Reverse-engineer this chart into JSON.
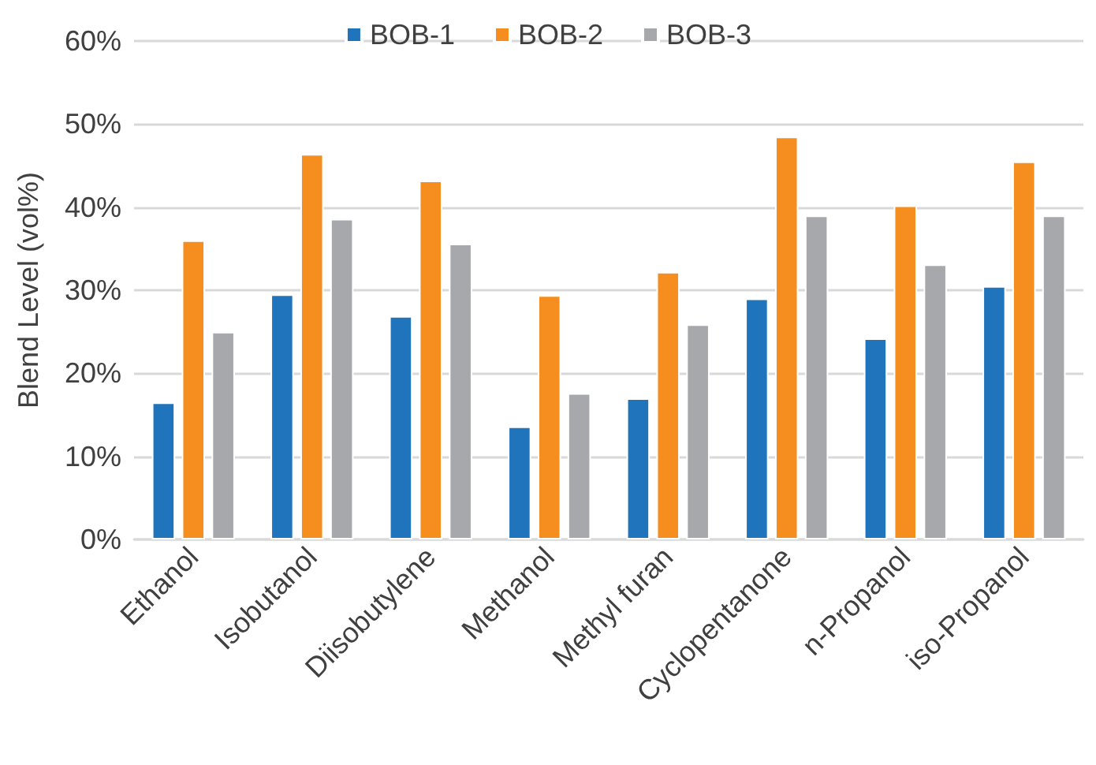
{
  "chart_data": {
    "type": "bar",
    "ylabel": "Blend Level (vol%)",
    "categories": [
      "Ethanol",
      "Isobutanol",
      "Diisobutylene",
      "Methanol",
      "Methyl furan",
      "Cyclopentanone",
      "n-Propanol",
      "iso-Propanol"
    ],
    "series": [
      {
        "name": "BOB-1",
        "color": "#1f74bc",
        "values": [
          16.5,
          29.5,
          26.9,
          13.6,
          17.0,
          29.0,
          24.2,
          30.5
        ]
      },
      {
        "name": "BOB-2",
        "color": "#f68e1f",
        "values": [
          36.0,
          46.4,
          43.2,
          29.4,
          32.2,
          48.5,
          40.2,
          45.5
        ]
      },
      {
        "name": "BOB-3",
        "color": "#a7a8ab",
        "values": [
          25.0,
          38.6,
          35.6,
          17.6,
          25.9,
          39.0,
          33.1,
          39.0
        ]
      }
    ],
    "ylim": [
      0,
      60
    ],
    "yticks": [
      {
        "value": 0,
        "label": "0%"
      },
      {
        "value": 10,
        "label": "10%"
      },
      {
        "value": 20,
        "label": "20%"
      },
      {
        "value": 30,
        "label": "30%"
      },
      {
        "value": 40,
        "label": "40%"
      },
      {
        "value": 50,
        "label": "50%"
      },
      {
        "value": 60,
        "label": "60%"
      }
    ],
    "grid": "y",
    "legend": "top"
  }
}
